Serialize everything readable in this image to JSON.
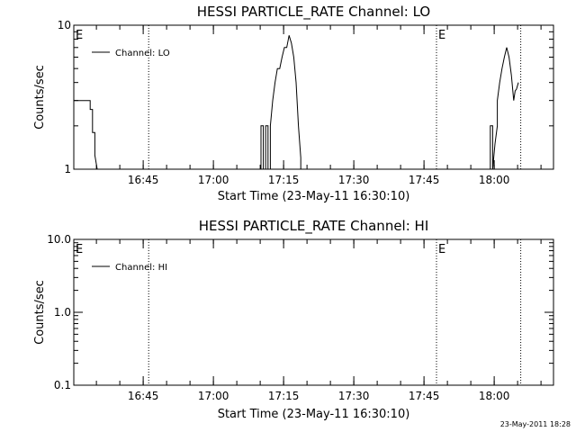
{
  "footer_date": "23-May-2011 18:28",
  "chart_data": [
    {
      "type": "line",
      "title": "HESSI PARTICLE_RATE Channel: LO",
      "xlabel": "Start Time (23-May-11 16:30:10)",
      "ylabel": "Counts/sec",
      "y_scale": "log",
      "ylim": [
        1,
        10
      ],
      "xlim_minutes": [
        0,
        102.5
      ],
      "y_ticks": [
        {
          "v": 1,
          "label": "1"
        },
        {
          "v": 10,
          "label": "10"
        }
      ],
      "x_ticks": [
        {
          "t": 14.83,
          "label": "16:45"
        },
        {
          "t": 29.83,
          "label": "17:00"
        },
        {
          "t": 44.83,
          "label": "17:15"
        },
        {
          "t": 59.83,
          "label": "17:30"
        },
        {
          "t": 74.83,
          "label": "17:45"
        },
        {
          "t": 89.83,
          "label": "18:00"
        }
      ],
      "legend": "Channel: LO",
      "legend_position": "top-left",
      "event_lines": [
        {
          "t": 0,
          "label": "E"
        },
        {
          "t": 16,
          "label": ""
        },
        {
          "t": 77.5,
          "label": "E"
        },
        {
          "t": 95.5,
          "label": ""
        }
      ],
      "series": [
        {
          "x": [
            0,
            3.5,
            3.5,
            4.0,
            4.0,
            4.5,
            4.5,
            5.0,
            40.0,
            40.0,
            40.5,
            40.5,
            41.0,
            41.0,
            41.5,
            41.5,
            42.0,
            42.0,
            42.5,
            43.0,
            43.5,
            44.0,
            44.5,
            45.0,
            45.5,
            46.0,
            46.5,
            47.0,
            47.5,
            48.0,
            48.5,
            48.5,
            89.0,
            89.0,
            89.5,
            89.5,
            90.0,
            90.5,
            90.5,
            91.0,
            91.5,
            92.0,
            92.5,
            93.0,
            93.5,
            94.0,
            94.3,
            94.6,
            95.0
          ],
          "y": [
            3,
            3,
            2.6,
            2.6,
            1.8,
            1.8,
            1.25,
            1,
            1,
            2,
            2,
            1,
            1,
            2,
            2,
            1,
            1,
            2,
            3,
            4,
            5,
            5,
            6,
            7,
            7,
            8.5,
            7.5,
            6,
            4,
            2,
            1.2,
            1,
            1,
            2,
            2,
            1,
            1.5,
            2,
            3,
            4,
            5,
            6,
            7,
            6,
            4.5,
            3,
            3.5,
            3.6,
            4
          ]
        }
      ]
    },
    {
      "type": "line",
      "title": "HESSI PARTICLE_RATE Channel: HI",
      "xlabel": "Start Time (23-May-11 16:30:10)",
      "ylabel": "Counts/sec",
      "y_scale": "log",
      "ylim": [
        0.1,
        10
      ],
      "xlim_minutes": [
        0,
        102.5
      ],
      "y_ticks": [
        {
          "v": 0.1,
          "label": "0.1"
        },
        {
          "v": 1,
          "label": "1.0"
        },
        {
          "v": 10,
          "label": "10.0"
        }
      ],
      "x_ticks": [
        {
          "t": 14.83,
          "label": "16:45"
        },
        {
          "t": 29.83,
          "label": "17:00"
        },
        {
          "t": 44.83,
          "label": "17:15"
        },
        {
          "t": 59.83,
          "label": "17:30"
        },
        {
          "t": 74.83,
          "label": "17:45"
        },
        {
          "t": 89.83,
          "label": "18:00"
        }
      ],
      "legend": "Channel: HI",
      "legend_position": "top-left",
      "event_lines": [
        {
          "t": 0,
          "label": "E"
        },
        {
          "t": 16,
          "label": ""
        },
        {
          "t": 77.5,
          "label": "E"
        },
        {
          "t": 95.5,
          "label": ""
        }
      ],
      "series": [
        {
          "x": [],
          "y": []
        }
      ]
    }
  ]
}
